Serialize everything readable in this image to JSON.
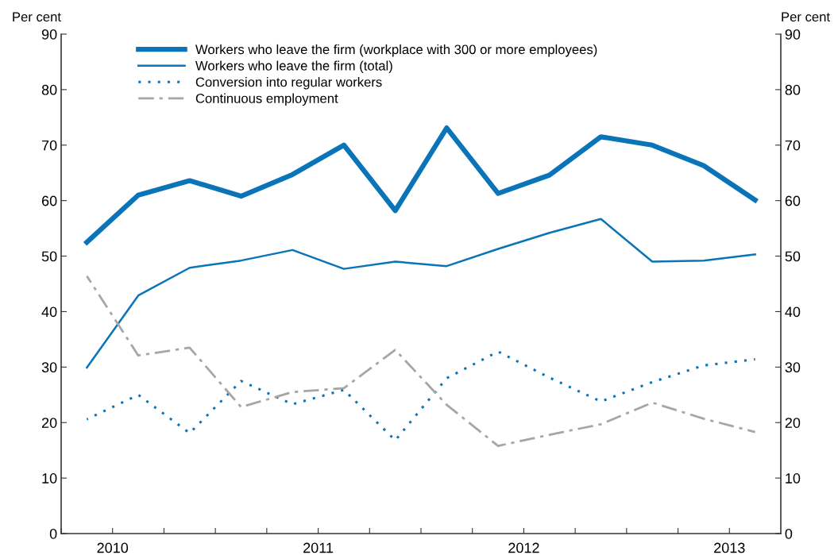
{
  "chart_data": {
    "type": "line",
    "ylabel": "Per cent",
    "y2label": "Per cent",
    "x": [
      2009.875,
      2010.125,
      2010.375,
      2010.625,
      2010.875,
      2011.125,
      2011.375,
      2011.625,
      2011.875,
      2012.125,
      2012.375,
      2012.625,
      2012.875,
      2013.125
    ],
    "xlim": [
      2009.75,
      2013.25
    ],
    "xticks": [
      {
        "value": 2009.75,
        "label": null
      },
      2010,
      {
        "value": 2010.25,
        "label": null
      },
      {
        "value": 2010.5,
        "label": null
      },
      {
        "value": 2010.75,
        "label": null
      },
      2011,
      {
        "value": 2011.25,
        "label": null
      },
      {
        "value": 2011.5,
        "label": null
      },
      {
        "value": 2011.75,
        "label": null
      },
      2012,
      {
        "value": 2012.25,
        "label": null
      },
      {
        "value": 2012.5,
        "label": null
      },
      {
        "value": 2012.75,
        "label": null
      },
      2013
    ],
    "ylim": [
      0,
      90
    ],
    "yticks": [
      0,
      10,
      20,
      30,
      40,
      50,
      60,
      70,
      80,
      90
    ],
    "y2lim": [
      0,
      90
    ],
    "y2ticks": [
      0,
      10,
      20,
      30,
      40,
      50,
      60,
      70,
      80,
      90
    ],
    "grid": false,
    "legend": "top left",
    "marker": "none",
    "series": [
      {
        "name": "Workers who leave the firm (workplace with 300 or more employees)",
        "color": "#0a74b9",
        "line_style": "solid",
        "values": [
          52.5,
          61.0,
          63.6,
          60.8,
          64.7,
          70.0,
          58.2,
          73.1,
          61.3,
          64.6,
          71.5,
          70.0,
          66.3,
          60.1
        ]
      },
      {
        "name": "Workers who leave the firm (total)",
        "color": "#0a74b9",
        "line_style": "solid",
        "values": [
          29.9,
          42.9,
          47.9,
          49.2,
          51.1,
          47.7,
          49.0,
          48.2,
          51.3,
          54.2,
          56.7,
          49.0,
          49.2,
          50.3
        ]
      },
      {
        "name": "Conversion into regular workers",
        "color": "#0a74b9",
        "line_style": "dotted",
        "values": [
          20.6,
          25.0,
          18.1,
          27.5,
          23.3,
          25.9,
          16.8,
          28.0,
          32.8,
          28.1,
          23.8,
          27.3,
          30.3,
          31.4
        ]
      },
      {
        "name": "Continuous employment",
        "color": "#a6a6a6",
        "line_style": "dashdot",
        "values": [
          46.4,
          32.1,
          33.5,
          22.8,
          25.5,
          26.2,
          33.1,
          23.2,
          15.8,
          17.8,
          19.7,
          23.6,
          20.7,
          18.3
        ]
      }
    ]
  }
}
